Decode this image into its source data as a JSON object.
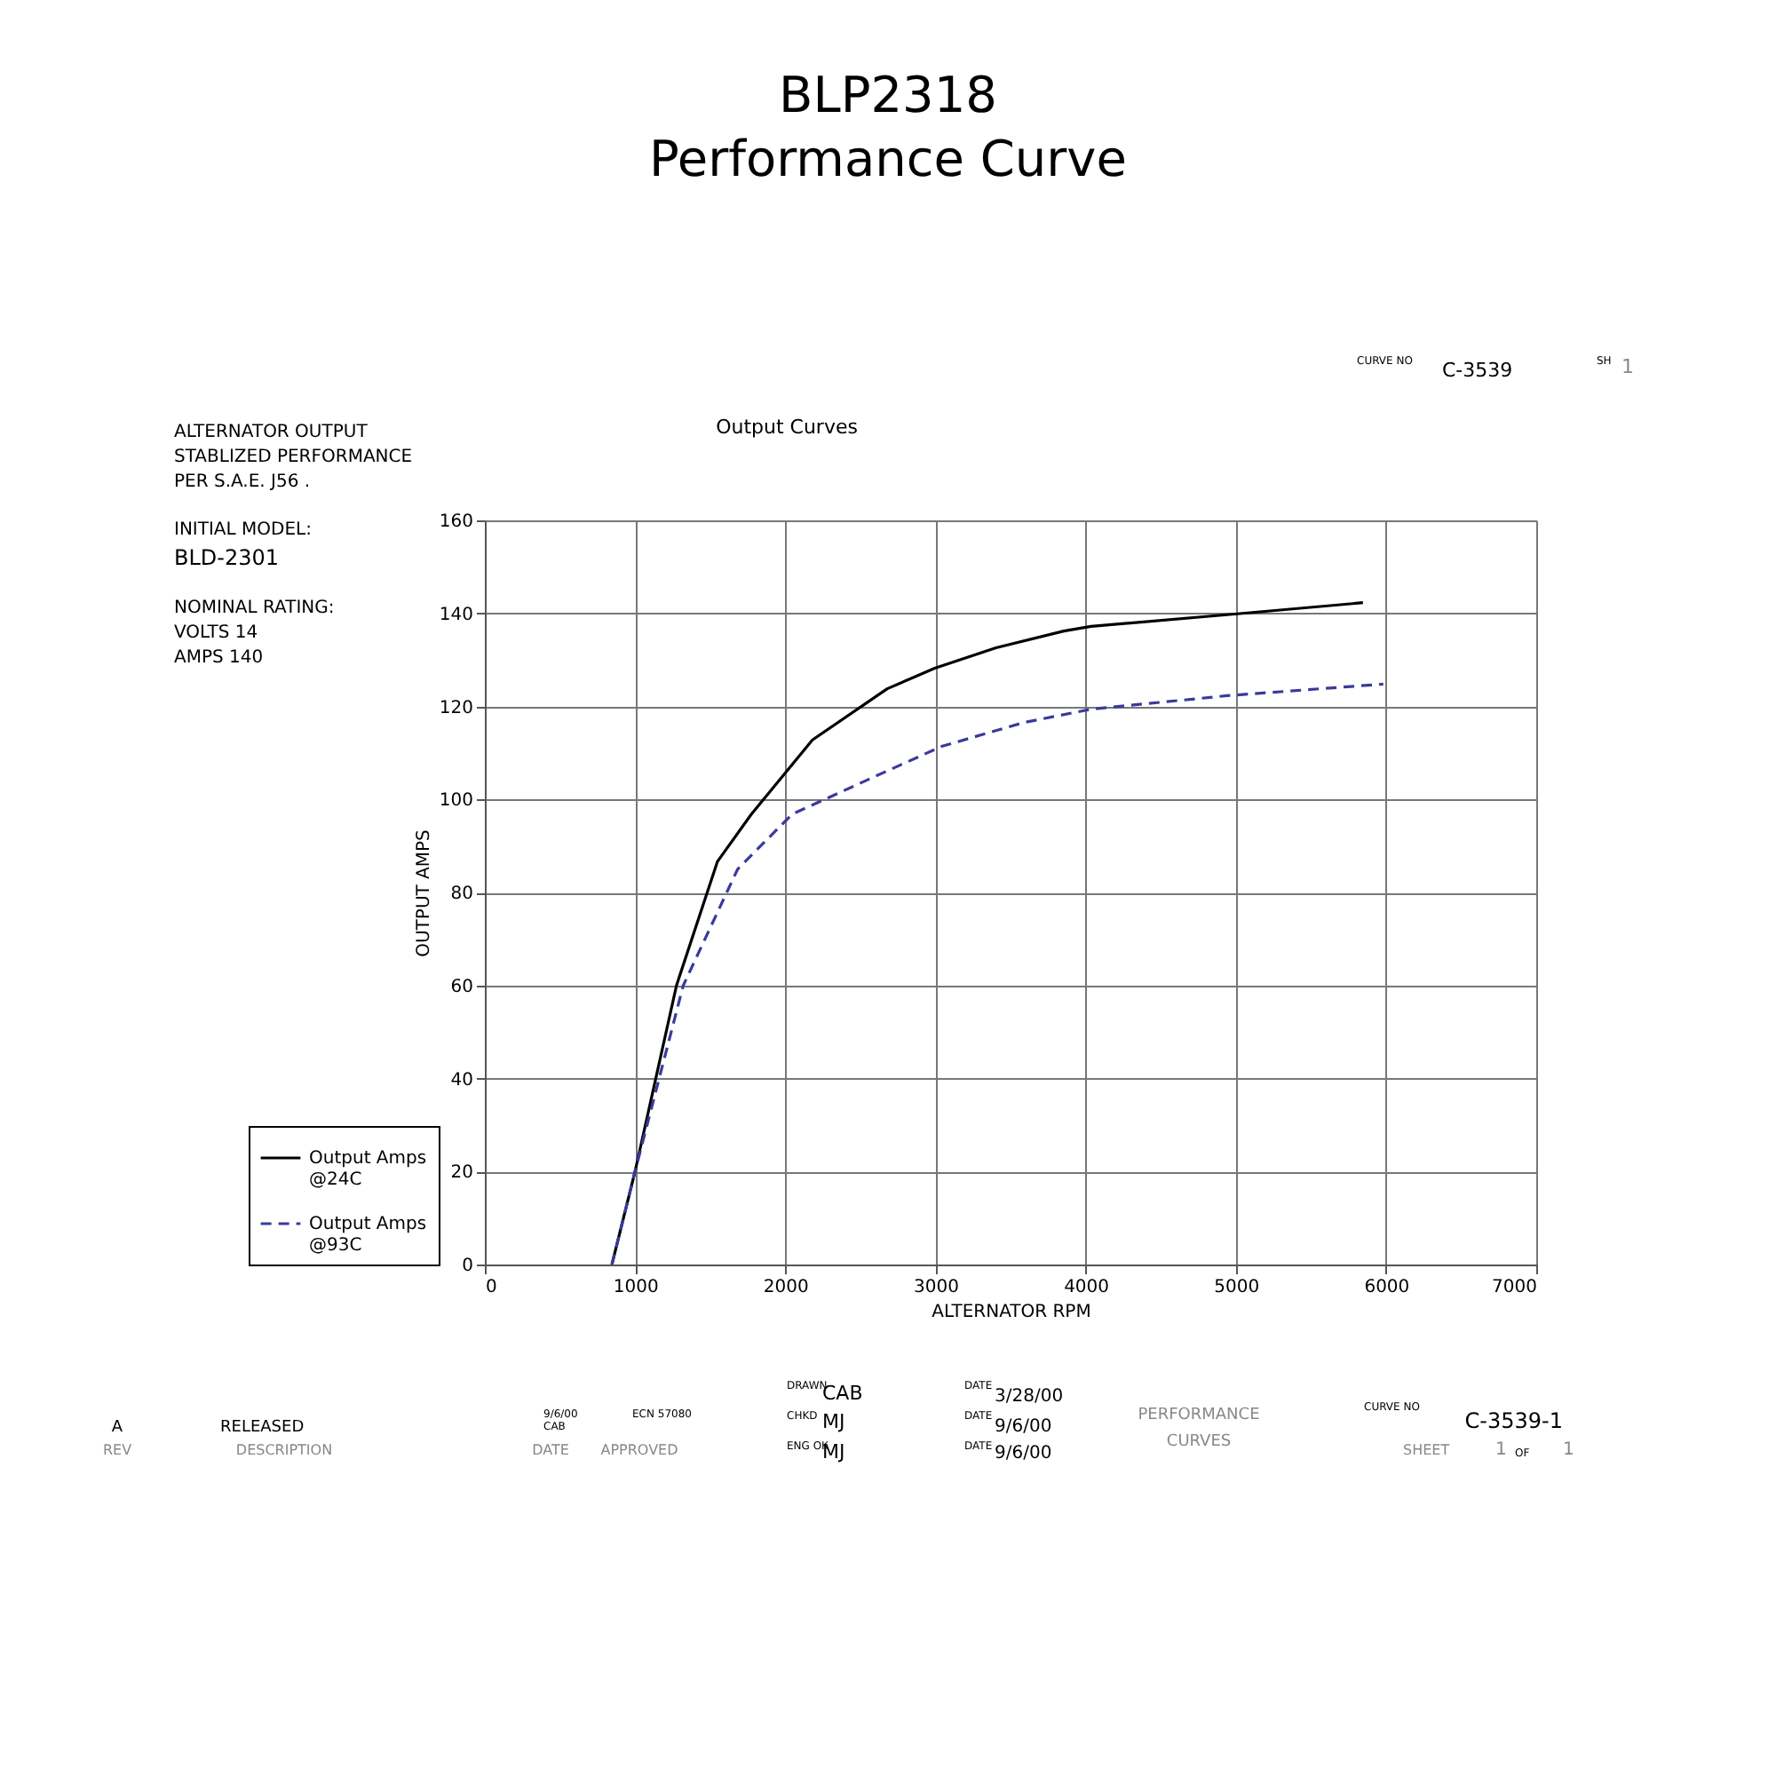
{
  "chart_data": {
    "type": "line",
    "title": [
      "BLP2318",
      "Performance Curve"
    ],
    "subtitle": "Output Curves",
    "xlabel": "ALTERNATOR RPM",
    "ylabel": "OUTPUT AMPS",
    "xlim": [
      0,
      7000
    ],
    "xticks": [
      0,
      {
        "value": 1000,
        "label": "1000"
      },
      {
        "value": 2000,
        "label": "2000"
      },
      {
        "value": 3000,
        "label": "3000"
      },
      {
        "value": 4000,
        "label": "4000"
      },
      {
        "value": 5000,
        "label": "5000"
      },
      {
        "value": 6000,
        "label": "6000"
      },
      {
        "value": 7000,
        "label": "7000"
      }
    ],
    "ylim": [
      0,
      160
    ],
    "yticks": [
      0,
      20,
      40,
      60,
      80,
      100,
      120,
      140,
      160
    ],
    "grid": true,
    "legend": "bottom left",
    "marker": "none",
    "series": [
      {
        "name": "Output Amps @24C",
        "color": "#000000",
        "line_style": "solid",
        "x": [
          846,
          1000,
          1276,
          1548,
          1774,
          2181,
          2679,
          2995,
          3403,
          3855,
          4036,
          5009,
          5846
        ],
        "values": [
          0,
          20,
          60,
          86.6,
          96.8,
          112.8,
          123.8,
          128.2,
          132.6,
          136.2,
          137.2,
          139.9,
          142.3
        ]
      },
      {
        "name": "Output Amps @93C",
        "color": "#3a3a9c",
        "line_style": "dashed",
        "x": [
          846,
          1000,
          1321,
          1683,
          2045,
          2588,
          3041,
          3584,
          4036,
          4941,
          5982
        ],
        "values": [
          0,
          20,
          60,
          85,
          96.8,
          104.8,
          111.4,
          116.5,
          119.4,
          122.3,
          124.8
        ]
      }
    ],
    "annotations": [
      "ALTERNATOR OUTPUT",
      "STABLIZED PERFORMANCE",
      "PER S.A.E. J56 .",
      "INITIAL MODEL:",
      "BLD-2301",
      "NOMINAL RATING:",
      "VOLTS 14",
      "AMPS 140",
      "CURVE NO",
      "C-3539",
      "SH",
      "1",
      "A",
      "RELEASED",
      "REV",
      "DESCRIPTION",
      "9/6/00",
      "CAB",
      "DATE",
      "ECN 57080",
      "APPROVED",
      "DRAWN",
      "CAB",
      "DATE",
      "3/28/00",
      "CHKD",
      "MJ",
      "DATE",
      "9/6/00",
      "ENG OK",
      "MJ",
      "DATE",
      "9/6/00",
      "PERFORMANCE",
      "CURVES",
      "CURVE NO",
      "C-3539-1",
      "SHEET",
      "1",
      "OF",
      "1"
    ]
  }
}
